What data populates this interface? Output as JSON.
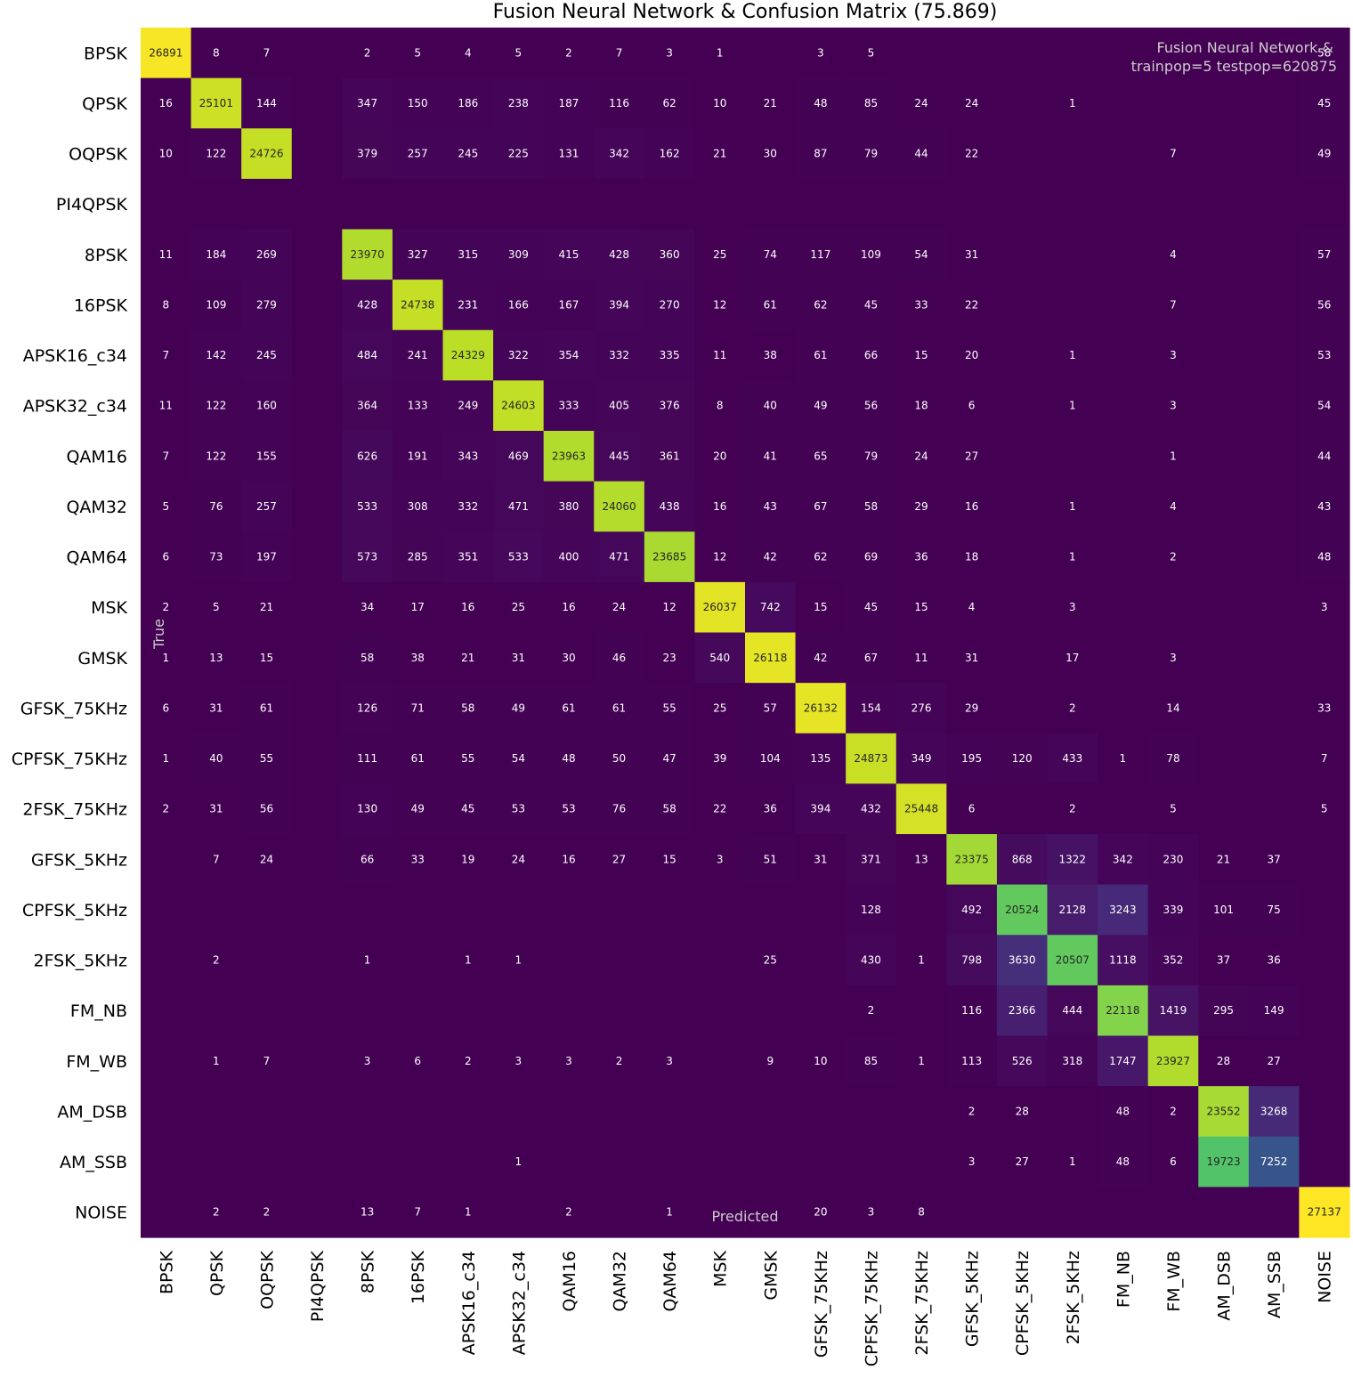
{
  "chart_data": {
    "type": "heatmap",
    "title": "Fusion Neural Network &  Confusion Matrix (75.869)",
    "xlabel": "Predicted",
    "ylabel": "True",
    "annotation": [
      "Fusion Neural Network &",
      "trainpop=5 testpop=620875"
    ],
    "labels": [
      "BPSK",
      "QPSK",
      "OQPSK",
      "PI4QPSK",
      "8PSK",
      "16PSK",
      "APSK16_c34",
      "APSK32_c34",
      "QAM16",
      "QAM32",
      "QAM64",
      "MSK",
      "GMSK",
      "GFSK_75KHz",
      "CPFSK_75KHz",
      "2FSK_75KHz",
      "GFSK_5KHz",
      "CPFSK_5KHz",
      "2FSK_5KHz",
      "FM_NB",
      "FM_WB",
      "AM_DSB",
      "AM_SSB",
      "NOISE"
    ],
    "value_range": [
      0,
      27137
    ],
    "colormap": "viridis",
    "matrix": [
      [
        26891,
        8,
        7,
        0,
        2,
        5,
        4,
        5,
        2,
        7,
        3,
        1,
        0,
        3,
        5,
        0,
        0,
        0,
        0,
        0,
        0,
        0,
        0,
        58
      ],
      [
        16,
        25101,
        144,
        0,
        347,
        150,
        186,
        238,
        187,
        116,
        62,
        10,
        21,
        48,
        85,
        24,
        24,
        0,
        1,
        0,
        0,
        0,
        0,
        45
      ],
      [
        10,
        122,
        24726,
        0,
        379,
        257,
        245,
        225,
        131,
        342,
        162,
        21,
        30,
        87,
        79,
        44,
        22,
        0,
        0,
        0,
        7,
        0,
        0,
        49
      ],
      [
        0,
        0,
        0,
        0,
        0,
        0,
        0,
        0,
        0,
        0,
        0,
        0,
        0,
        0,
        0,
        0,
        0,
        0,
        0,
        0,
        0,
        0,
        0,
        0
      ],
      [
        11,
        184,
        269,
        0,
        23970,
        327,
        315,
        309,
        415,
        428,
        360,
        25,
        74,
        117,
        109,
        54,
        31,
        0,
        0,
        0,
        4,
        0,
        0,
        57
      ],
      [
        8,
        109,
        279,
        0,
        428,
        24738,
        231,
        166,
        167,
        394,
        270,
        12,
        61,
        62,
        45,
        33,
        22,
        0,
        0,
        0,
        7,
        0,
        0,
        56
      ],
      [
        7,
        142,
        245,
        0,
        484,
        241,
        24329,
        322,
        354,
        332,
        335,
        11,
        38,
        61,
        66,
        15,
        20,
        0,
        1,
        0,
        3,
        0,
        0,
        53
      ],
      [
        11,
        122,
        160,
        0,
        364,
        133,
        249,
        24603,
        333,
        405,
        376,
        8,
        40,
        49,
        56,
        18,
        6,
        0,
        1,
        0,
        3,
        0,
        0,
        54
      ],
      [
        7,
        122,
        155,
        0,
        626,
        191,
        343,
        469,
        23963,
        445,
        361,
        20,
        41,
        65,
        79,
        24,
        27,
        0,
        0,
        0,
        1,
        0,
        0,
        44
      ],
      [
        5,
        76,
        257,
        0,
        533,
        308,
        332,
        471,
        380,
        24060,
        438,
        16,
        43,
        67,
        58,
        29,
        16,
        0,
        1,
        0,
        4,
        0,
        0,
        43
      ],
      [
        6,
        73,
        197,
        0,
        573,
        285,
        351,
        533,
        400,
        471,
        23685,
        12,
        42,
        62,
        69,
        36,
        18,
        0,
        1,
        0,
        2,
        0,
        0,
        48
      ],
      [
        2,
        5,
        21,
        0,
        34,
        17,
        16,
        25,
        16,
        24,
        12,
        26037,
        742,
        15,
        45,
        15,
        4,
        0,
        3,
        0,
        0,
        0,
        0,
        3
      ],
      [
        1,
        13,
        15,
        0,
        58,
        38,
        21,
        31,
        30,
        46,
        23,
        540,
        26118,
        42,
        67,
        11,
        31,
        0,
        17,
        0,
        3,
        0,
        0,
        0
      ],
      [
        6,
        31,
        61,
        0,
        126,
        71,
        58,
        49,
        61,
        61,
        55,
        25,
        57,
        26132,
        154,
        276,
        29,
        0,
        2,
        0,
        14,
        0,
        0,
        33
      ],
      [
        1,
        40,
        55,
        0,
        111,
        61,
        55,
        54,
        48,
        50,
        47,
        39,
        104,
        135,
        24873,
        349,
        195,
        120,
        433,
        1,
        78,
        0,
        0,
        7
      ],
      [
        2,
        31,
        56,
        0,
        130,
        49,
        45,
        53,
        53,
        76,
        58,
        22,
        36,
        394,
        432,
        25448,
        6,
        0,
        2,
        0,
        5,
        0,
        0,
        5
      ],
      [
        0,
        7,
        24,
        0,
        66,
        33,
        19,
        24,
        16,
        27,
        15,
        3,
        51,
        31,
        371,
        13,
        23375,
        868,
        1322,
        342,
        230,
        21,
        37,
        0
      ],
      [
        0,
        0,
        0,
        0,
        0,
        0,
        0,
        0,
        0,
        0,
        0,
        0,
        0,
        0,
        128,
        0,
        492,
        20524,
        2128,
        3243,
        339,
        101,
        75,
        0
      ],
      [
        0,
        2,
        0,
        0,
        1,
        0,
        1,
        1,
        0,
        0,
        0,
        0,
        25,
        0,
        430,
        1,
        798,
        3630,
        20507,
        1118,
        352,
        37,
        36,
        0
      ],
      [
        0,
        0,
        0,
        0,
        0,
        0,
        0,
        0,
        0,
        0,
        0,
        0,
        0,
        0,
        2,
        0,
        116,
        2366,
        444,
        22118,
        1419,
        295,
        149,
        0
      ],
      [
        0,
        1,
        7,
        0,
        3,
        6,
        2,
        3,
        3,
        2,
        3,
        0,
        9,
        10,
        85,
        1,
        113,
        526,
        318,
        1747,
        23927,
        28,
        27,
        0
      ],
      [
        0,
        0,
        0,
        0,
        0,
        0,
        0,
        0,
        0,
        0,
        0,
        0,
        0,
        0,
        0,
        0,
        2,
        28,
        0,
        48,
        2,
        23552,
        3268,
        0
      ],
      [
        0,
        0,
        0,
        0,
        0,
        0,
        0,
        1,
        0,
        0,
        0,
        0,
        0,
        0,
        0,
        0,
        3,
        27,
        1,
        48,
        6,
        19723,
        7252,
        0
      ],
      [
        0,
        2,
        2,
        0,
        13,
        7,
        1,
        0,
        2,
        0,
        1,
        0,
        0,
        20,
        3,
        8,
        0,
        0,
        0,
        0,
        0,
        0,
        0,
        27137
      ]
    ]
  }
}
